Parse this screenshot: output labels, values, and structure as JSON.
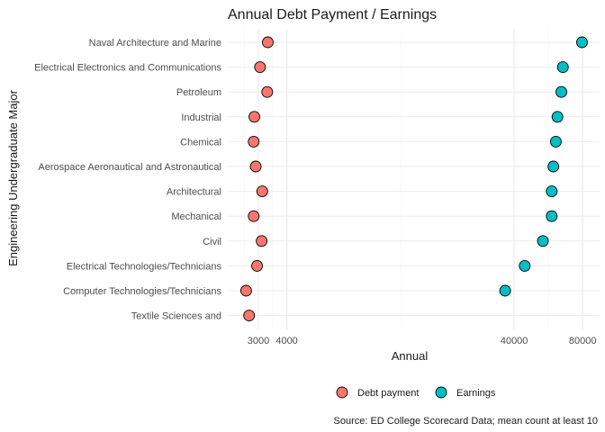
{
  "chart_data": {
    "type": "scatter",
    "title": "Annual Debt Payment / Earnings",
    "xlabel": "Annual",
    "ylabel": "Engineering Undergraduate Major",
    "x_scale": "log",
    "xlim": [
      2200,
      95000
    ],
    "x_ticks": [
      3000,
      4000,
      40000,
      80000
    ],
    "x_tick_labels": [
      "3000",
      "4000",
      "40000",
      "80000"
    ],
    "grid": true,
    "legend_position": "bottom",
    "categories": [
      "Naval Architecture and Marine",
      "Electrical Electronics and Communications",
      "Petroleum",
      "Industrial",
      "Chemical",
      "Aerospace Aeronautical and Astronautical",
      "Architectural",
      "Mechanical",
      "Civil",
      "Electrical Technologies/Technicians",
      "Computer Technologies/Technicians",
      "Textile Sciences and"
    ],
    "series": [
      {
        "name": "Debt payment",
        "color": "#F8766D",
        "values": [
          3300,
          3050,
          3280,
          2880,
          2860,
          2920,
          3120,
          2860,
          3100,
          2960,
          2650,
          2730
        ]
      },
      {
        "name": "Earnings",
        "color": "#00BFC4",
        "values": [
          79500,
          65500,
          64500,
          62000,
          61000,
          59500,
          58500,
          58500,
          53500,
          44500,
          36500,
          null
        ]
      }
    ],
    "caption": "Source: ED College Scorecard Data; mean count at least 10"
  }
}
